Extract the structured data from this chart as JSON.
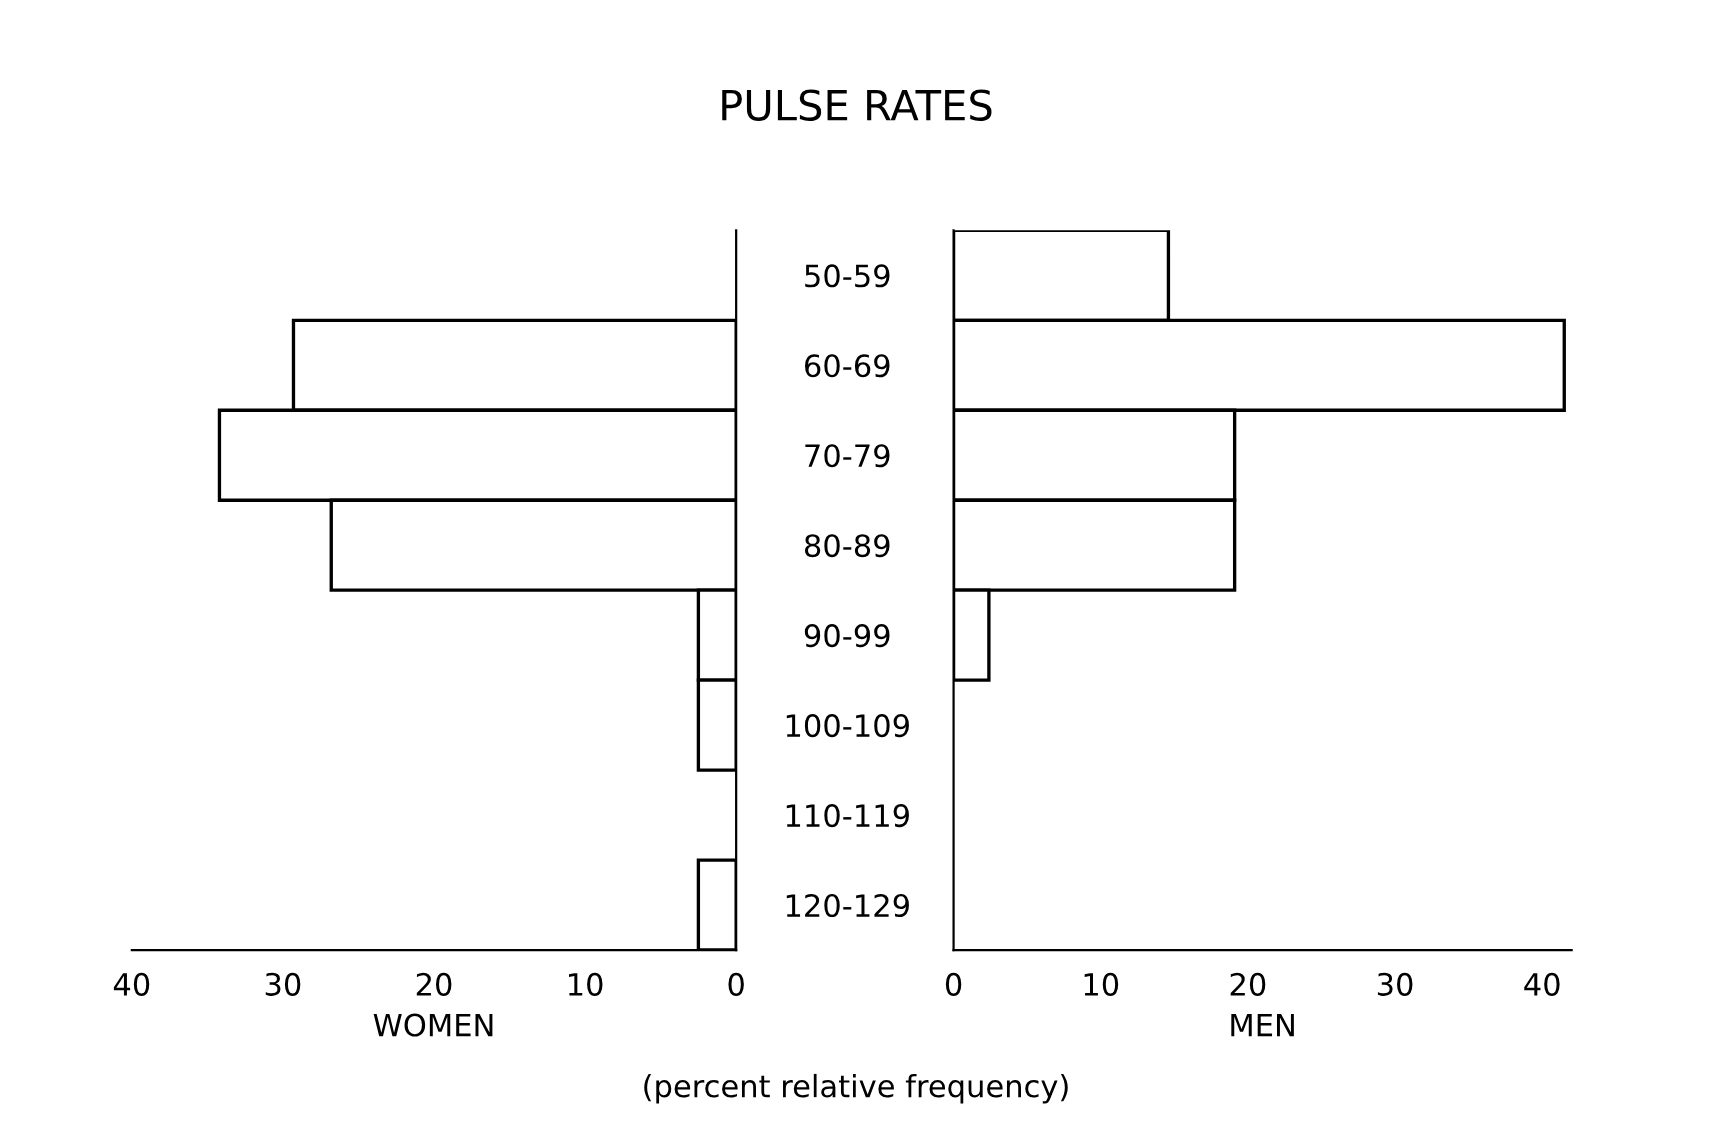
{
  "chart_data": [
    {
      "type": "bar",
      "orientation": "horizontal",
      "title": "PULSE RATES",
      "xlabel": "WOMEN",
      "annotations": [
        "(percent relative frequency)"
      ],
      "categories": [
        "50-59",
        "60-69",
        "70-79",
        "80-89",
        "90-99",
        "100-109",
        "110-119",
        "120-129"
      ],
      "series": [
        {
          "color": "#ffffff",
          "values": [
            null,
            29.3,
            34.2,
            26.8,
            2.5,
            2.5,
            null,
            2.5
          ]
        }
      ],
      "xlim": [
        40,
        0
      ],
      "xticks": [
        40,
        30,
        20,
        10,
        0
      ],
      "grid": false,
      "legend": false
    },
    {
      "type": "bar",
      "orientation": "horizontal",
      "xlabel": "MEN",
      "categories": [
        null,
        null,
        null,
        null,
        null,
        null,
        null,
        null
      ],
      "series": [
        {
          "color": "#ffffff",
          "values": [
            14.6,
            41.5,
            19.1,
            19.1,
            2.4,
            null,
            null,
            null
          ]
        }
      ],
      "xlim": [
        0,
        42
      ],
      "xticks": [
        0,
        10,
        20,
        30,
        40
      ],
      "tick_labels": "x",
      "grid": false,
      "legend": false
    }
  ]
}
